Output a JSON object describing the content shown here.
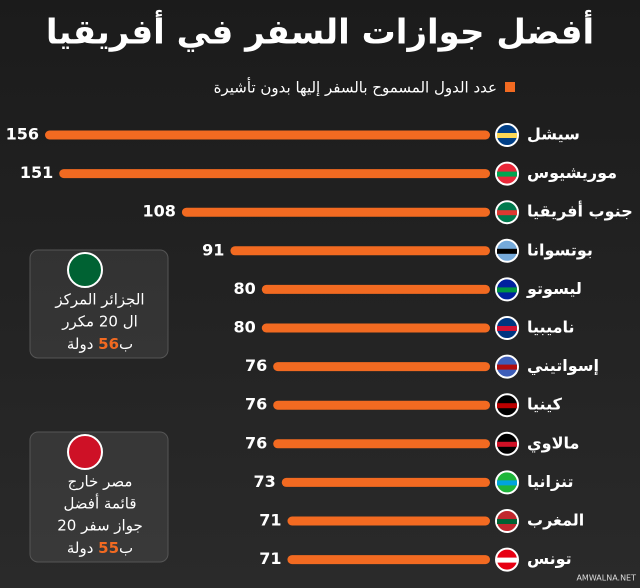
{
  "chart_data": {
    "type": "bar",
    "orientation": "horizontal",
    "title": "أفضل جوازات السفر في أفريقيا",
    "legend_label": "عدد الدول المسموح بالسفر إليها بدون تأشيرة",
    "color": "#f26a21",
    "categories": [
      "سيشل",
      "موريشيوس",
      "جنوب أفريقيا",
      "بوتسوانا",
      "ليسوتو",
      "ناميبيا",
      "إسواتيني",
      "كينيا",
      "مالاوي",
      "تنزانيا",
      "المغرب",
      "تونس"
    ],
    "values": [
      156,
      151,
      108,
      91,
      80,
      80,
      76,
      76,
      76,
      73,
      71,
      71
    ],
    "notes": [
      {
        "lines": [
          "الجزائر المركز",
          "ال 20 مكرر"
        ],
        "prefix": "ب",
        "number": 56,
        "unit": "دولة"
      },
      {
        "lines": [
          "مصر خارج",
          "قائمة أفضل",
          "20 جواز سفر"
        ],
        "prefix": "ب",
        "number": 55,
        "unit": "دولة"
      }
    ],
    "watermark": "AMWALNA.NET"
  }
}
